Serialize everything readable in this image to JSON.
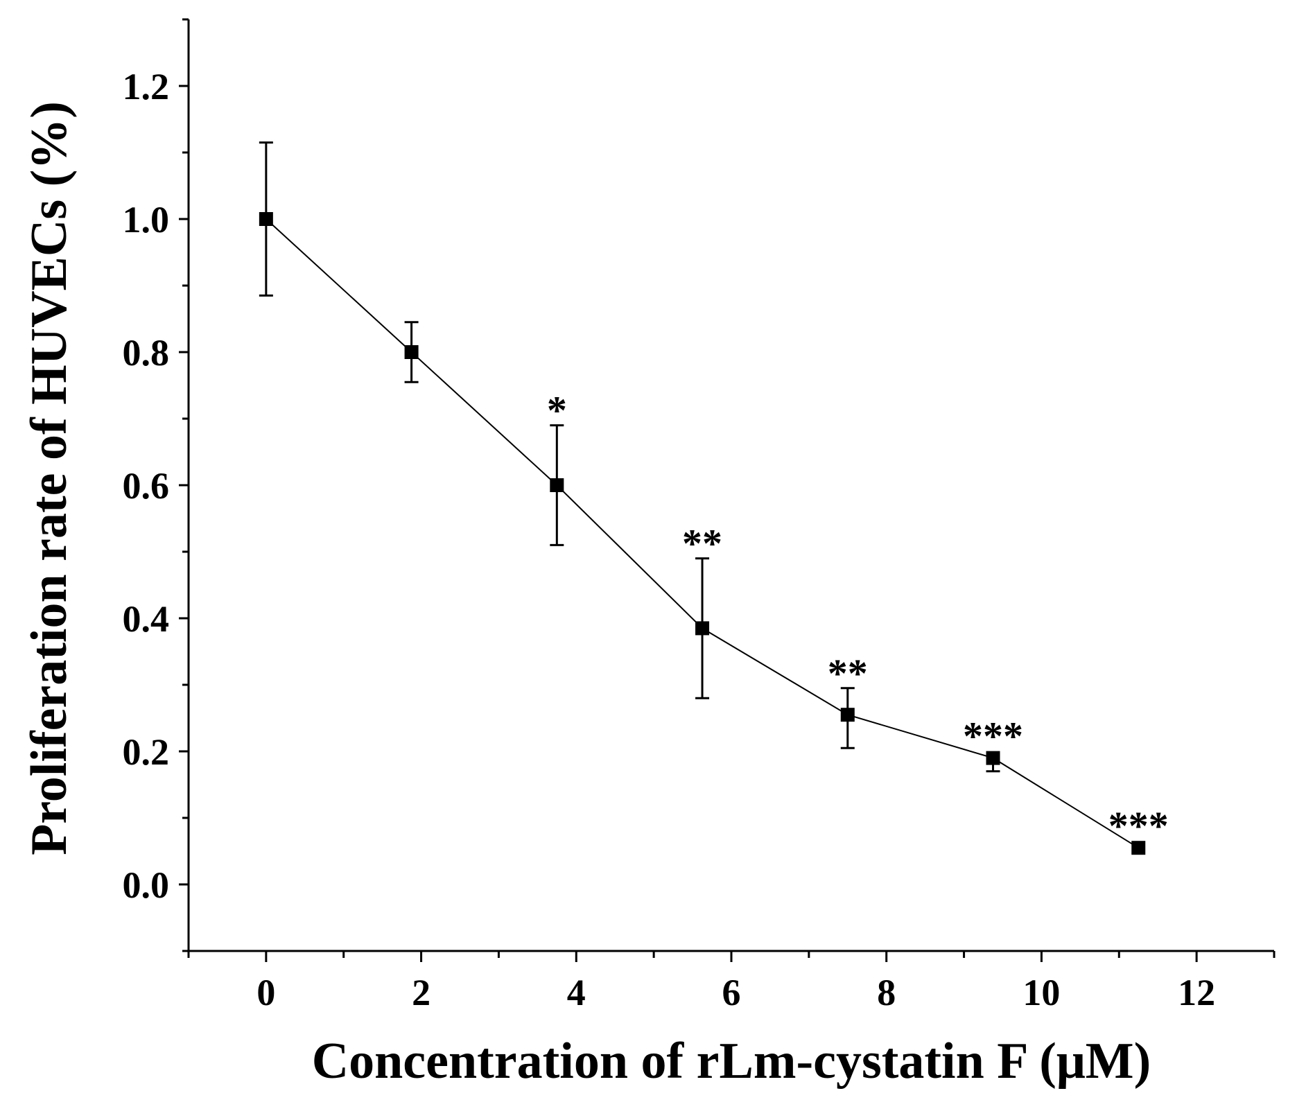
{
  "chart_data": {
    "type": "line",
    "title": "",
    "xlabel": "Concentration of rLm-cystatin F (μM)",
    "ylabel": "Proliferation rate of HUVECs (%)",
    "xlim": [
      -1,
      13
    ],
    "ylim": [
      -0.1,
      1.3
    ],
    "x_ticks": [
      {
        "value": 0,
        "label": "0"
      },
      {
        "value": 2,
        "label": "2"
      },
      {
        "value": 4,
        "label": "4"
      },
      {
        "value": 6,
        "label": "6"
      },
      {
        "value": 8,
        "label": "8"
      },
      {
        "value": 10,
        "label": "10"
      },
      {
        "value": 12,
        "label": "12"
      }
    ],
    "y_ticks": [
      {
        "value": 0.0,
        "label": "0.0"
      },
      {
        "value": 0.2,
        "label": "0.2"
      },
      {
        "value": 0.4,
        "label": "0.4"
      },
      {
        "value": 0.6,
        "label": "0.6"
      },
      {
        "value": 0.8,
        "label": "0.8"
      },
      {
        "value": 1.0,
        "label": "1.0"
      },
      {
        "value": 1.2,
        "label": "1.2"
      }
    ],
    "x_minor_step": 1,
    "y_minor_step": 0.1,
    "grid": false,
    "series": [
      {
        "name": "Proliferation rate",
        "x": [
          0,
          1.875,
          3.75,
          5.625,
          7.5,
          9.375,
          11.25
        ],
        "y": [
          1.0,
          0.8,
          0.6,
          0.385,
          0.255,
          0.19,
          0.055
        ],
        "error_upper": [
          0.115,
          0.045,
          0.09,
          0.105,
          0.04,
          0.0,
          0.0
        ],
        "error_lower": [
          0.115,
          0.045,
          0.09,
          0.105,
          0.05,
          0.02,
          0.0
        ],
        "significance": [
          "",
          "",
          "*",
          "**",
          "**",
          "***",
          "***"
        ],
        "color": "#000000",
        "marker": "square"
      }
    ]
  }
}
